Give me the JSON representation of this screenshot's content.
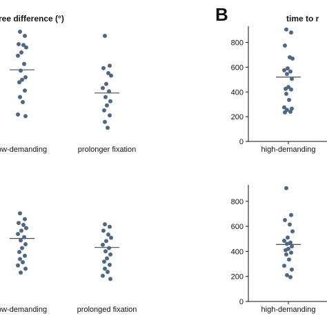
{
  "panel_letters": {
    "B": "B"
  },
  "chart_data": [
    {
      "id": "top_left",
      "type": "scatter",
      "title": "ree difference (°)",
      "categories": [
        "ow-demanding",
        "prolonger fixation"
      ],
      "colors": {
        "points": "#4d6886",
        "mean_line": "#4a4a4a"
      },
      "series": [
        {
          "values": [
            19.5,
            19.0,
            18.0,
            17.9,
            17.6,
            17.0,
            16.6,
            15.6,
            14.8,
            14.0,
            13.7,
            13.4,
            12.4,
            11.6,
            11.0,
            9.5,
            9.3
          ],
          "mean": 14.9
        },
        {
          "values": [
            19.0,
            15.4,
            15.1,
            14.5,
            14.2,
            13.2,
            12.7,
            12.3,
            11.6,
            11.1,
            10.6,
            10.0,
            9.4,
            8.6,
            7.9
          ],
          "mean": 12.1
        }
      ]
    },
    {
      "id": "top_right",
      "type": "scatter",
      "title": "time to r",
      "categories": [
        "high-demanding"
      ],
      "ylim": [
        0,
        920
      ],
      "yticks": [
        "0",
        "200",
        "400",
        "600",
        "800"
      ],
      "colors": {
        "points": "#4d6886",
        "mean_line": "#4a4a4a"
      },
      "series": [
        {
          "values": [
            905,
            880,
            775,
            680,
            670,
            590,
            575,
            565,
            545,
            505,
            440,
            425,
            420,
            385,
            335,
            275,
            265,
            255,
            240,
            235
          ],
          "mean": 520
        }
      ]
    },
    {
      "id": "bottom_left",
      "type": "scatter",
      "title": "",
      "categories": [
        "ow-demanding",
        "prolonged fixation"
      ],
      "colors": {
        "points": "#4d6886",
        "mean_line": "#4a4a4a"
      },
      "series": [
        {
          "values": [
            17.3,
            16.4,
            15.8,
            15.5,
            15.0,
            14.6,
            14.1,
            13.6,
            13.1,
            12.5,
            11.9,
            11.3,
            10.7,
            10.2,
            9.7,
            9.2,
            8.7,
            8.1
          ],
          "mean": 13.4
        },
        {
          "values": [
            15.6,
            15.2,
            14.6,
            14.0,
            13.5,
            13.0,
            12.4,
            11.9,
            11.4,
            10.9,
            10.3,
            9.8,
            9.3,
            8.7,
            8.2,
            7.6,
            7.1
          ],
          "mean": 12.0
        }
      ]
    },
    {
      "id": "bottom_right",
      "type": "scatter",
      "title": "",
      "categories": [
        "high-demanding"
      ],
      "ylim": [
        0,
        920
      ],
      "yticks": [
        "0",
        "200",
        "400",
        "600",
        "800"
      ],
      "colors": {
        "points": "#4d6886",
        "mean_line": "#4a4a4a"
      },
      "series": [
        {
          "values": [
            905,
            690,
            650,
            615,
            560,
            510,
            485,
            470,
            460,
            440,
            420,
            410,
            390,
            375,
            335,
            285,
            255,
            210,
            195
          ],
          "mean": 455
        }
      ]
    }
  ]
}
